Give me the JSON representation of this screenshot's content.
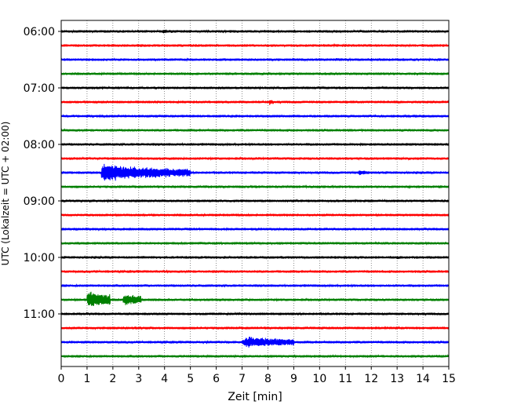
{
  "chart_data": {
    "type": "line",
    "title": "",
    "xlabel": "Zeit  [min]",
    "ylabel": "UTC (Lokalzeit = UTC + 02:00)",
    "xlim": [
      0,
      15
    ],
    "x_ticks": [
      0,
      1,
      2,
      3,
      4,
      5,
      6,
      7,
      8,
      9,
      10,
      11,
      12,
      13,
      14,
      15
    ],
    "x_tick_labels": [
      "0",
      "1",
      "2",
      "3",
      "4",
      "5",
      "6",
      "7",
      "8",
      "9",
      "10",
      "11",
      "12",
      "13",
      "14",
      "15"
    ],
    "y_tick_labels": [
      "06:00",
      "07:00",
      "08:00",
      "09:00",
      "10:00",
      "11:00"
    ],
    "y_tick_trace_index": [
      0,
      4,
      8,
      12,
      16,
      20
    ],
    "grid": "vertical dotted at each minute",
    "legend": "none",
    "trace_interval_min": 15,
    "start_time": "06:00",
    "color_cycle": [
      "#000000",
      "#ff0000",
      "#0000ff",
      "#008000"
    ],
    "series": [
      {
        "start": "06:00",
        "color": "#000000",
        "events": [
          {
            "t": 3.9,
            "dur": 0.4,
            "amp": 3
          }
        ]
      },
      {
        "start": "06:15",
        "color": "#ff0000",
        "events": []
      },
      {
        "start": "06:30",
        "color": "#0000ff",
        "events": [
          {
            "t": 10.6,
            "dur": 0.6,
            "amp": 2.5
          }
        ]
      },
      {
        "start": "06:45",
        "color": "#008000",
        "events": []
      },
      {
        "start": "07:00",
        "color": "#000000",
        "events": []
      },
      {
        "start": "07:15",
        "color": "#ff0000",
        "events": [
          {
            "t": 8.05,
            "dur": 0.15,
            "amp": 5
          }
        ]
      },
      {
        "start": "07:30",
        "color": "#0000ff",
        "events": [
          {
            "t": 8.6,
            "dur": 0.4,
            "amp": 2
          }
        ]
      },
      {
        "start": "07:45",
        "color": "#008000",
        "events": []
      },
      {
        "start": "08:00",
        "color": "#000000",
        "events": []
      },
      {
        "start": "08:15",
        "color": "#ff0000",
        "events": []
      },
      {
        "start": "08:30",
        "color": "#0000ff",
        "events": [
          {
            "t": 1.55,
            "dur": 1.4,
            "amp": 14
          },
          {
            "t": 2.9,
            "dur": 2.1,
            "amp": 9
          },
          {
            "t": 11.5,
            "dur": 0.4,
            "amp": 4
          }
        ]
      },
      {
        "start": "08:45",
        "color": "#008000",
        "events": [
          {
            "t": 5.5,
            "dur": 1.0,
            "amp": 2
          }
        ]
      },
      {
        "start": "09:00",
        "color": "#000000",
        "events": [
          {
            "t": 3.1,
            "dur": 0.3,
            "amp": 2
          }
        ]
      },
      {
        "start": "09:15",
        "color": "#ff0000",
        "events": [
          {
            "t": 9.0,
            "dur": 0.4,
            "amp": 2
          }
        ]
      },
      {
        "start": "09:30",
        "color": "#0000ff",
        "events": []
      },
      {
        "start": "09:45",
        "color": "#008000",
        "events": []
      },
      {
        "start": "10:00",
        "color": "#000000",
        "events": [
          {
            "t": 13.0,
            "dur": 0.15,
            "amp": 3
          }
        ]
      },
      {
        "start": "10:15",
        "color": "#ff0000",
        "events": []
      },
      {
        "start": "10:30",
        "color": "#0000ff",
        "events": []
      },
      {
        "start": "10:45",
        "color": "#008000",
        "events": [
          {
            "t": 1.0,
            "dur": 0.9,
            "amp": 12
          },
          {
            "t": 2.4,
            "dur": 0.7,
            "amp": 9
          },
          {
            "t": 6.0,
            "dur": 1.2,
            "amp": 2
          }
        ]
      },
      {
        "start": "11:00",
        "color": "#000000",
        "events": [
          {
            "t": 5.4,
            "dur": 0.3,
            "amp": 2
          }
        ]
      },
      {
        "start": "11:15",
        "color": "#ff0000",
        "events": [
          {
            "t": 2.0,
            "dur": 0.4,
            "amp": 2
          }
        ]
      },
      {
        "start": "11:30",
        "color": "#0000ff",
        "events": [
          {
            "t": 7.0,
            "dur": 2.0,
            "amp": 8
          },
          {
            "t": 5.1,
            "dur": 0.2,
            "amp": 2
          }
        ]
      },
      {
        "start": "11:45",
        "color": "#008000",
        "events": [
          {
            "t": 3.9,
            "dur": 0.3,
            "amp": 2
          },
          {
            "t": 10.3,
            "dur": 0.6,
            "amp": 2
          }
        ]
      }
    ]
  }
}
